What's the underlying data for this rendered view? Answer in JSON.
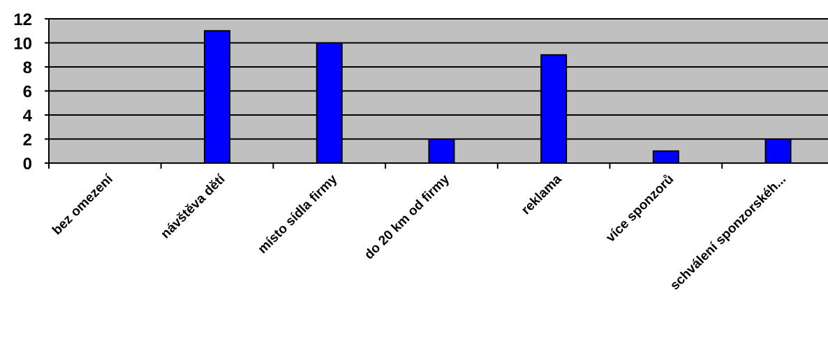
{
  "chart_data": {
    "type": "bar",
    "categories": [
      "bez omezení",
      "návštěva dětí",
      "místo sídla firmy",
      "do 20 km od firmy",
      "reklama",
      "více sponzorů",
      "schválení sponzorskéh..."
    ],
    "values": [
      0,
      11,
      10,
      2,
      9,
      1,
      2
    ],
    "ylim": [
      0,
      12
    ],
    "yticks": [
      "0",
      "2",
      "4",
      "6",
      "8",
      "10",
      "12"
    ],
    "grid": true,
    "colors": {
      "plot_background": "#c0c0c0",
      "bar": "#0000ff",
      "bar_border": "#000000"
    }
  }
}
